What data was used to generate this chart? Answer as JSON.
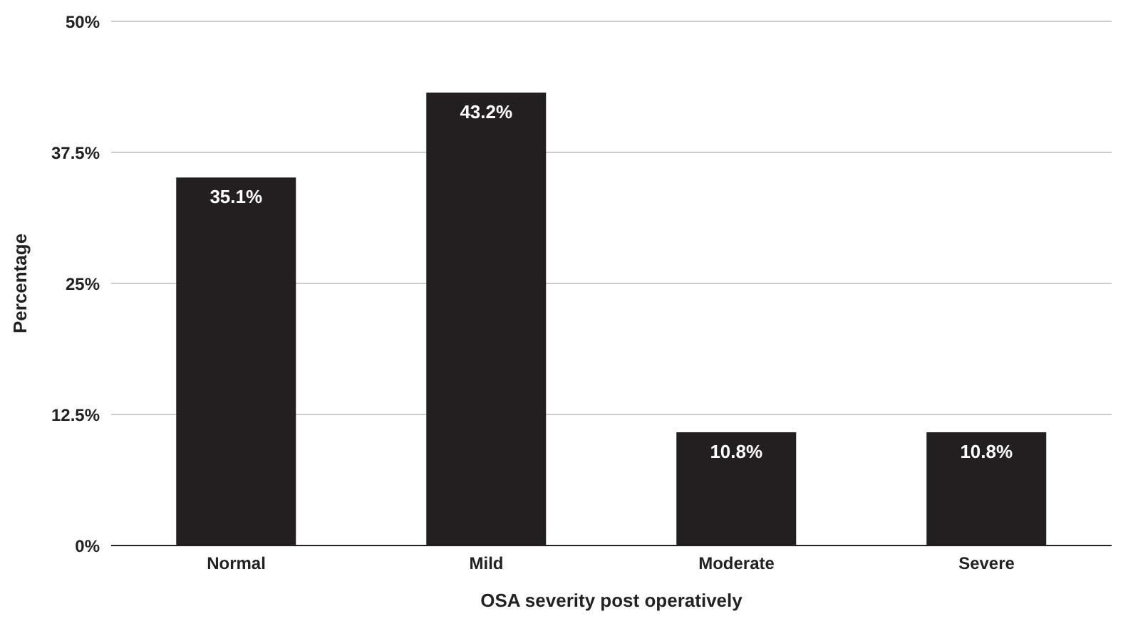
{
  "chart_data": {
    "type": "bar",
    "xlabel": "OSA severity post operatively",
    "ylabel": "Percentage",
    "categories": [
      "Normal",
      "Mild",
      "Moderate",
      "Severe"
    ],
    "values": [
      35.1,
      43.2,
      10.8,
      10.8
    ],
    "value_labels": [
      "35.1%",
      "43.2%",
      "10.8%",
      "10.8%"
    ],
    "color": "#231f20",
    "ylim": [
      0,
      50
    ],
    "yticks": [
      {
        "value": 0,
        "label": "0%"
      },
      {
        "value": 12.5,
        "label": "12.5%"
      },
      {
        "value": 25,
        "label": "25%"
      },
      {
        "value": 37.5,
        "label": "37.5%"
      },
      {
        "value": 50,
        "label": "50%"
      }
    ],
    "grid": "y"
  }
}
